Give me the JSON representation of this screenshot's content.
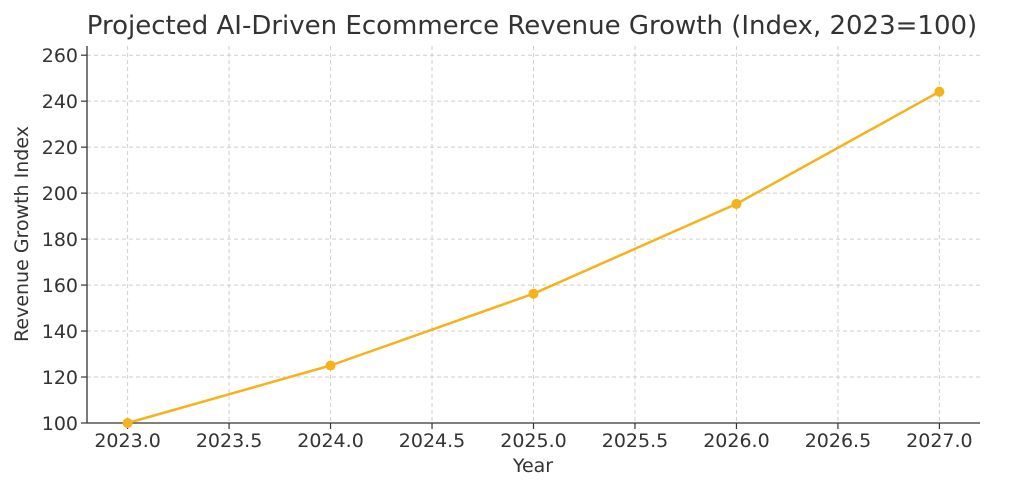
{
  "chart_data": {
    "type": "line",
    "title": "Projected AI-Driven Ecommerce Revenue Growth (Index, 2023=100)",
    "xlabel": "Year",
    "ylabel": "Revenue Growth Index",
    "xlim": [
      2022.8,
      2027.2
    ],
    "ylim": [
      100,
      264
    ],
    "x_ticks": [
      "2023.0",
      "2023.5",
      "2024.0",
      "2024.5",
      "2025.0",
      "2025.5",
      "2026.0",
      "2026.5",
      "2027.0"
    ],
    "y_ticks": [
      "100",
      "120",
      "140",
      "160",
      "180",
      "200",
      "220",
      "240",
      "260"
    ],
    "grid": true,
    "series": [
      {
        "x": [
          2023,
          2024,
          2025,
          2026,
          2027
        ],
        "values": [
          100,
          125,
          156.25,
          195.31,
          244.14
        ],
        "color": "#f5b21a",
        "marker": "circle"
      }
    ]
  }
}
